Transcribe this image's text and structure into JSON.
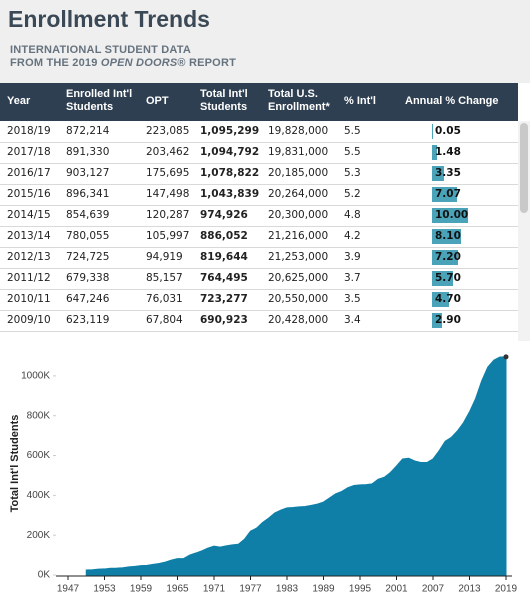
{
  "header": {
    "title": "Enrollment Trends",
    "subtitle_line1": "INTERNATIONAL STUDENT DATA",
    "subtitle_line2": [
      "FROM THE 2019 ",
      "OPEN DOORS",
      "® REPORT"
    ]
  },
  "table": {
    "columns": [
      "Year",
      "Enrolled Int'l\nStudents",
      "OPT",
      "Total Int'l\nStudents",
      "Total U.S.\nEnrollment*",
      "% Int'l",
      "Annual % Change"
    ],
    "rows": [
      [
        "2018/19",
        "872,214",
        "223,085",
        "1,095,299",
        "19,828,000",
        "5.5"
      ],
      [
        "2017/18",
        "891,330",
        "203,462",
        "1,094,792",
        "19,831,000",
        "5.5"
      ],
      [
        "2016/17",
        "903,127",
        "175,695",
        "1,078,822",
        "20,185,000",
        "5.3"
      ],
      [
        "2015/16",
        "896,341",
        "147,498",
        "1,043,839",
        "20,264,000",
        "5.2"
      ],
      [
        "2014/15",
        "854,639",
        "120,287",
        "974,926",
        "20,300,000",
        "4.8"
      ],
      [
        "2013/14",
        "780,055",
        "105,997",
        "886,052",
        "21,216,000",
        "4.2"
      ],
      [
        "2012/13",
        "724,725",
        "94,919",
        "819,644",
        "21,253,000",
        "3.9"
      ],
      [
        "2011/12",
        "679,338",
        "85,157",
        "764,495",
        "20,625,000",
        "3.7"
      ],
      [
        "2010/11",
        "647,246",
        "76,031",
        "723,277",
        "20,550,000",
        "3.5"
      ],
      [
        "2009/10",
        "623,119",
        "67,804",
        "690,923",
        "20,428,000",
        "3.4"
      ]
    ],
    "annual_change": {
      "values": [
        0.05,
        1.48,
        3.35,
        7.07,
        10.0,
        8.1,
        7.2,
        5.7,
        4.7,
        2.9
      ],
      "value_labels": [
        "0.05",
        "1.48",
        "3.35",
        "7.07",
        "10.00",
        "8.10",
        "7.20",
        "5.70",
        "4.70",
        "2.90"
      ]
    }
  },
  "chart_data": {
    "type": "area",
    "y_label": "Total Int'l Students",
    "color": "#0f7fa8",
    "x": [
      1950,
      1951,
      1952,
      1953,
      1954,
      1955,
      1956,
      1957,
      1958,
      1959,
      1960,
      1961,
      1962,
      1963,
      1964,
      1965,
      1966,
      1967,
      1968,
      1969,
      1970,
      1971,
      1972,
      1973,
      1974,
      1975,
      1976,
      1977,
      1978,
      1979,
      1980,
      1981,
      1982,
      1983,
      1984,
      1985,
      1986,
      1987,
      1988,
      1989,
      1990,
      1991,
      1992,
      1993,
      1994,
      1995,
      1996,
      1997,
      1998,
      1999,
      2000,
      2001,
      2002,
      2003,
      2004,
      2005,
      2006,
      2007,
      2008,
      2009,
      2010,
      2011,
      2012,
      2013,
      2014,
      2015,
      2016,
      2017,
      2018,
      2019
    ],
    "values": [
      25464,
      26433,
      29813,
      30462,
      33675,
      34232,
      36494,
      40666,
      43391,
      47245,
      48486,
      53107,
      58086,
      64705,
      74814,
      82045,
      82709,
      100262,
      110315,
      121362,
      134959,
      144708,
      140126,
      146097,
      151066,
      154580,
      179344,
      219994,
      235509,
      263938,
      286343,
      311882,
      326299,
      336985,
      338894,
      342113,
      343777,
      349609,
      356187,
      366354,
      386851,
      407529,
      419585,
      438618,
      449749,
      452635,
      453787,
      457984,
      481280,
      490933,
      514723,
      547867,
      582996,
      586323,
      572509,
      565039,
      564766,
      582984,
      623805,
      671616,
      690923,
      723277,
      764495,
      819644,
      886052,
      974926,
      1043839,
      1078822,
      1094792,
      1095299
    ],
    "xlim": [
      1947,
      2019
    ],
    "xticks": [
      1947,
      1953,
      1959,
      1965,
      1971,
      1977,
      1983,
      1989,
      1995,
      2001,
      2007,
      2013,
      2019
    ],
    "ylim": [
      0,
      1120000
    ],
    "yticks": [
      {
        "value": 0,
        "label": "0K"
      },
      {
        "value": 200000,
        "label": "200K"
      },
      {
        "value": 400000,
        "label": "400K"
      },
      {
        "value": 600000,
        "label": "600K"
      },
      {
        "value": 800000,
        "label": "800K"
      },
      {
        "value": 1000000,
        "label": "1000K"
      }
    ]
  }
}
